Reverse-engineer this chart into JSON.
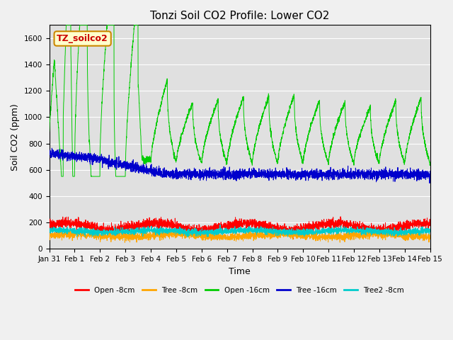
{
  "title": "Tonzi Soil CO2 Profile: Lower CO2",
  "ylabel": "Soil CO2 (ppm)",
  "xlabel": "Time",
  "ylim": [
    0,
    1700
  ],
  "yticks": [
    0,
    200,
    400,
    600,
    800,
    1000,
    1200,
    1400,
    1600
  ],
  "legend_labels": [
    "Open -8cm",
    "Tree -8cm",
    "Open -16cm",
    "Tree -16cm",
    "Tree2 -8cm"
  ],
  "legend_colors": [
    "#ff0000",
    "#ffa500",
    "#00cc00",
    "#0000cc",
    "#00cccc"
  ],
  "text_box_label": "TZ_soilco2",
  "text_box_facecolor": "#ffffcc",
  "text_box_edgecolor": "#cc8800",
  "text_box_textcolor": "#cc0000",
  "plot_bg_color": "#e0e0e0",
  "fig_bg_color": "#f0f0f0",
  "n_points": 3360,
  "x_start": 0,
  "x_end": 15,
  "xtick_positions": [
    0,
    1,
    2,
    3,
    4,
    5,
    6,
    7,
    8,
    9,
    10,
    11,
    12,
    13,
    14,
    15
  ],
  "xtick_labels": [
    "Jan 31",
    "Feb 1",
    "Feb 2",
    "Feb 3",
    "Feb 4",
    "Feb 5",
    "Feb 6",
    "Feb 7",
    "Feb 8",
    "Feb 9",
    "Feb 10",
    "Feb 11",
    "Feb 12",
    "Feb 13",
    "Feb 14",
    "Feb 15"
  ],
  "title_fontsize": 11,
  "axis_label_fontsize": 9,
  "tick_fontsize": 7.5
}
